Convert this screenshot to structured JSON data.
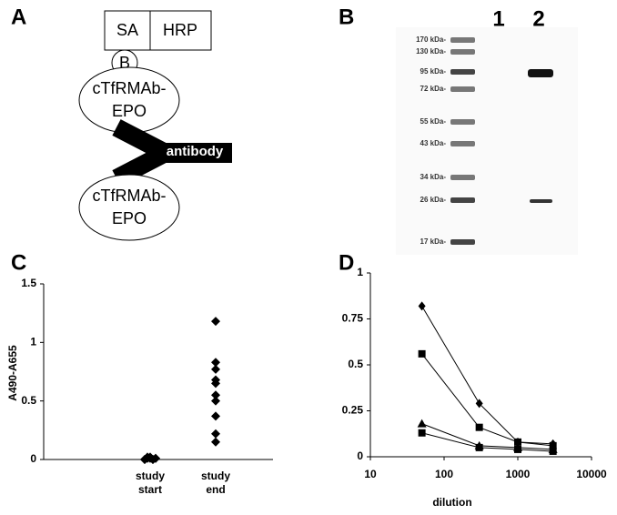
{
  "panel_a": {
    "label": "A",
    "boxes": [
      "SA",
      "HRP"
    ],
    "biotin": "B",
    "top_protein": [
      "cTfRMAb-",
      "EPO"
    ],
    "antibody": "antibody",
    "bottom_protein": [
      "cTfRMAb-",
      "EPO"
    ]
  },
  "panel_b": {
    "label": "B",
    "lanes": [
      "1",
      "2"
    ],
    "markers": [
      "170 kDa-",
      "130 kDa-",
      "95 kDa-",
      "72 kDa-",
      "55 kDa-",
      "43 kDa-",
      "34 kDa-",
      "26 kDa-",
      "17 kDa-"
    ]
  },
  "chart_data": [
    {
      "type": "scatter",
      "label": "C",
      "ylabel": "A490-A655",
      "categories": [
        [
          "study",
          "start"
        ],
        [
          "study",
          "end"
        ]
      ],
      "values": [
        [
          0,
          0.01,
          0.02,
          0,
          0.01,
          0,
          0.02,
          0.01,
          0,
          0.01
        ],
        [
          1.18,
          0.83,
          0.77,
          0.68,
          0.65,
          0.55,
          0.5,
          0.37,
          0.22,
          0.15
        ]
      ],
      "color": "#000000",
      "ylim": [
        0,
        1.5
      ],
      "yticks": [
        0,
        0.5,
        1,
        1.5
      ]
    },
    {
      "type": "line",
      "label": "D",
      "xlabel": "dilution",
      "xscale": "log",
      "x": [
        50,
        300,
        1000,
        3000
      ],
      "series": [
        {
          "marker": "diamond",
          "color": "#000000",
          "values": [
            0.82,
            0.29,
            0.08,
            0.07
          ]
        },
        {
          "marker": "square",
          "color": "#000000",
          "values": [
            0.56,
            0.16,
            0.08,
            0.06
          ]
        },
        {
          "marker": "triangle",
          "color": "#000000",
          "values": [
            0.18,
            0.06,
            0.05,
            0.04
          ]
        },
        {
          "marker": "square",
          "color": "#000000",
          "values": [
            0.13,
            0.05,
            0.04,
            0.03
          ]
        }
      ],
      "xlim": [
        10,
        10000
      ],
      "xticks": [
        10,
        100,
        1000,
        10000
      ],
      "ylim": [
        0,
        1
      ],
      "yticks": [
        0,
        0.25,
        0.5,
        0.75,
        1
      ]
    }
  ]
}
